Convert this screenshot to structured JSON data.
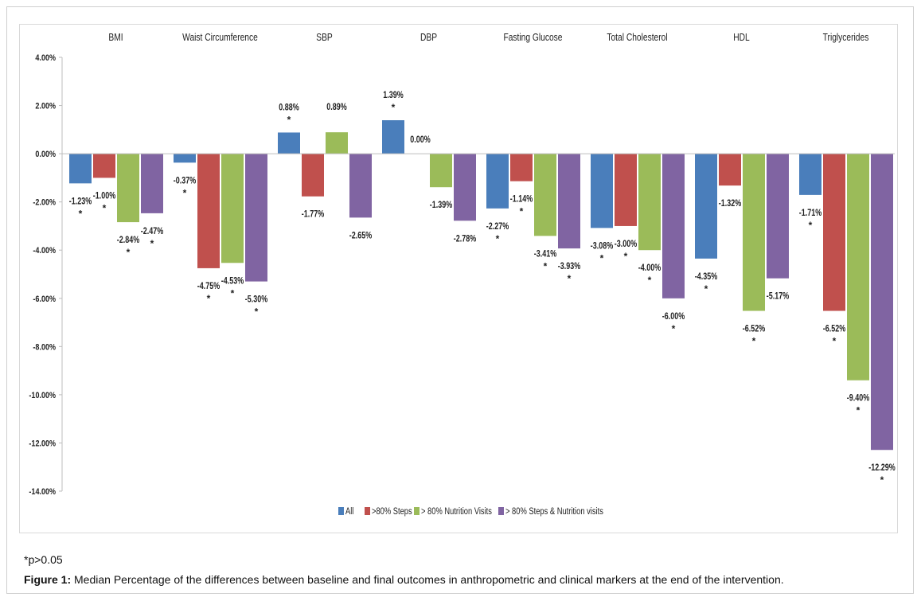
{
  "chart_data": {
    "type": "bar",
    "categories": [
      "BMI",
      "Waist Circumference",
      "SBP",
      "DBP",
      "Fasting Glucose",
      "Total Cholesterol",
      "HDL",
      "Triglycerides"
    ],
    "series": [
      {
        "name": "All",
        "color": "#4a7ebb",
        "values": [
          -1.23,
          -0.37,
          0.88,
          1.39,
          -2.27,
          -3.08,
          -4.35,
          -1.71
        ],
        "labels": [
          "-1.23%",
          "-0.37%",
          "0.88%",
          "1.39%",
          "-2.27%",
          "-3.08%",
          "-4.35%",
          "-1.71%"
        ],
        "stars": [
          true,
          true,
          true,
          true,
          true,
          true,
          true,
          true
        ]
      },
      {
        "name": ">80% Steps",
        "color": "#c0504d",
        "values": [
          -1.0,
          -4.75,
          -1.77,
          0.0,
          -1.14,
          -3.0,
          -1.32,
          -6.52
        ],
        "labels": [
          "-1.00%",
          "-4.75%",
          "-1.77%",
          "0.00%",
          "-1.14%",
          "-3.00%",
          "-1.32%",
          "-6.52%"
        ],
        "stars": [
          true,
          true,
          false,
          false,
          true,
          true,
          false,
          true
        ]
      },
      {
        "name": "> 80% Nutrition Visits",
        "color": "#9bbb59",
        "values": [
          -2.84,
          -4.53,
          0.89,
          -1.39,
          -3.41,
          -4.0,
          -6.52,
          -9.4
        ],
        "labels": [
          "-2.84%",
          "-4.53%",
          "0.89%",
          "-1.39%",
          "-3.41%",
          "-4.00%",
          "-6.52%",
          "-9.40%"
        ],
        "stars": [
          true,
          true,
          false,
          false,
          true,
          true,
          true,
          true
        ]
      },
      {
        "name": "> 80% Steps & Nutrition visits",
        "color": "#8064a2",
        "values": [
          -2.47,
          -5.3,
          -2.65,
          -2.78,
          -3.93,
          -6.0,
          -5.17,
          -12.29
        ],
        "labels": [
          "-2.47%",
          "-5.30%",
          "-2.65%",
          "-2.78%",
          "-3.93%",
          "-6.00%",
          "-5.17%",
          "-12.29%"
        ],
        "stars": [
          true,
          true,
          false,
          false,
          true,
          true,
          false,
          true
        ]
      }
    ],
    "star_symbol": "*",
    "ylim": [
      -14,
      4
    ],
    "ytick_labels": [
      "4.00%",
      "2.00%",
      "0.00%",
      "-2.00%",
      "-4.00%",
      "-6.00%",
      "-8.00%",
      "-10.00%",
      "-12.00%",
      "-14.00%"
    ],
    "ytick_values": [
      4,
      2,
      0,
      -2,
      -4,
      -6,
      -8,
      -10,
      -12,
      -14
    ],
    "legend_position": "bottom",
    "grid": false
  },
  "footnote": "*p>0.05",
  "caption": {
    "prefix": "Figure 1:",
    "text": " Median Percentage of the differences between baseline and final outcomes in anthropometric and clinical markers at the end of the intervention."
  }
}
